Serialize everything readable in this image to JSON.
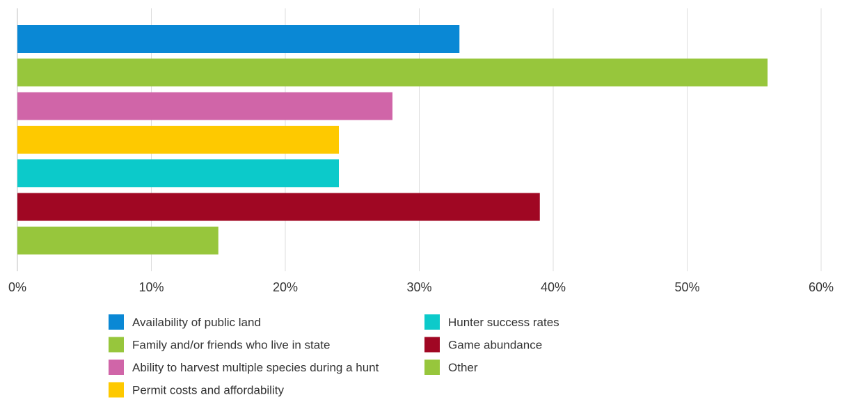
{
  "chart_data": {
    "type": "bar",
    "orientation": "horizontal",
    "title": "",
    "xlabel": "",
    "ylabel": "",
    "xlim": [
      0,
      60
    ],
    "x_ticks": [
      "0%",
      "10%",
      "20%",
      "30%",
      "40%",
      "50%",
      "60%"
    ],
    "grid": true,
    "legend_position": "bottom",
    "categories": [
      "Availability of public land",
      "Family and/or friends who live in state",
      "Ability to harvest multiple species during a hunt",
      "Permit costs and affordability",
      "Hunter success rates",
      "Game abundance",
      "Other"
    ],
    "values": [
      33,
      56,
      28,
      24,
      24,
      39,
      15
    ],
    "colors": [
      "#0a88d5",
      "#97c63c",
      "#d065a8",
      "#fec900",
      "#0ccaca",
      "#a00723",
      "#97c63c"
    ],
    "legend_columns": [
      [
        0,
        1,
        2,
        3
      ],
      [
        4,
        5,
        6
      ]
    ]
  }
}
